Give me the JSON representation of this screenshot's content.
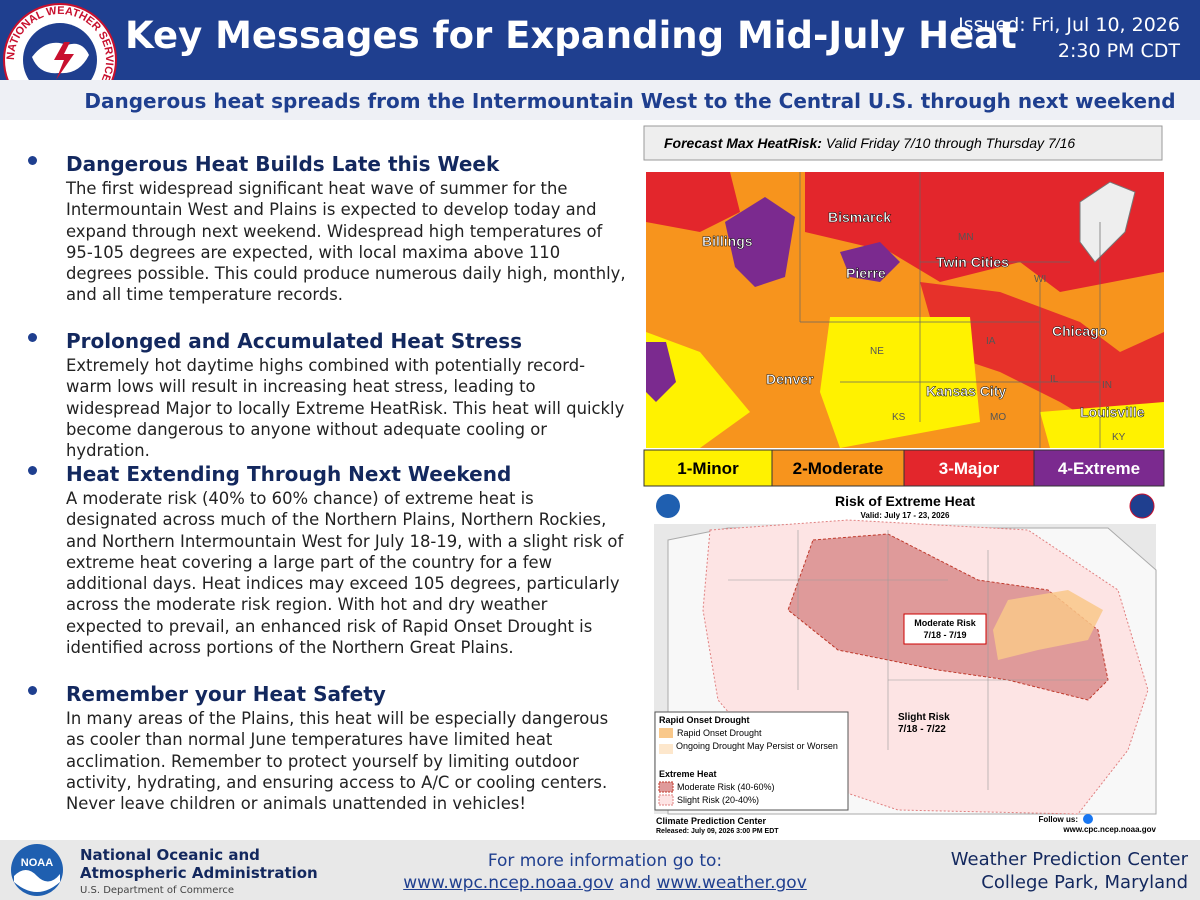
{
  "header": {
    "title": "Key Messages for Expanding Mid-July Heat",
    "issued": "Issued: Fri, Jul 10, 2026",
    "time": "2:30 PM CDT",
    "logo_text": "NATIONAL WEATHER SERVICE"
  },
  "subtitle": "Dangerous heat spreads from the Intermountain West to the Central U.S. through next weekend",
  "messages": [
    {
      "heading": "Dangerous Heat Builds Late this Week",
      "body": "The first widespread significant heat wave of summer for the Intermountain West and Plains is expected to develop today and expand through next weekend. Widespread high temperatures of 95-105 degrees are expected, with local maxima above 110 degrees possible. This could produce numerous daily high, monthly, and all time temperature records."
    },
    {
      "heading": "Prolonged and Accumulated Heat Stress",
      "body": "Extremely hot daytime highs combined with potentially record-warm lows will result in increasing heat stress, leading to widespread Major to locally Extreme HeatRisk. This heat will quickly become dangerous to anyone without adequate cooling or hydration."
    },
    {
      "heading": "Heat Extending Through Next Weekend",
      "body": "A moderate risk (40% to 60% chance) of extreme heat is designated across much of the Northern Plains, Northern Rockies, and Northern Intermountain West for July 18-19, with a slight risk of extreme heat covering a large part of the country for a few additional days. Heat indices may exceed 105 degrees, particularly across the moderate risk region. With hot and dry weather expected to prevail, an enhanced risk of Rapid Onset Drought is identified across portions of the Northern Great Plains."
    },
    {
      "heading": "Remember your Heat Safety",
      "body": "In many areas of the Plains, this heat will be especially dangerous as cooler than normal June temperatures have limited heat acclimation. Remember to protect yourself by limiting outdoor activity, hydrating, and ensuring access to A/C or cooling centers. Never leave children or animals unattended in vehicles!"
    }
  ],
  "heatrisk_map": {
    "title_bold": "Forecast Max HeatRisk:",
    "title_rest": "Valid Friday 7/10 through Thursday 7/16",
    "cities": [
      "Bismarck",
      "Billings",
      "Pierre",
      "Twin Cities",
      "Chicago",
      "Denver",
      "Kansas City",
      "Louisville"
    ],
    "states": [
      "MN",
      "WI",
      "NE",
      "IA",
      "IL",
      "IN",
      "KS",
      "MO",
      "KY"
    ],
    "legend": [
      "1-Minor",
      "2-Moderate",
      "3-Major",
      "4-Extreme"
    ]
  },
  "extreme_heat_map": {
    "title": "Risk of Extreme Heat",
    "valid": "Valid: July 17 - 23, 2026",
    "moderate_label": "Moderate Risk",
    "moderate_dates": "7/18 - 7/19",
    "slight_label": "Slight Risk",
    "slight_dates": "7/18 - 7/22",
    "legend_drought_title": "Rapid Onset Drought",
    "legend_drought": "Rapid Onset Drought",
    "legend_ongoing": "Ongoing Drought May Persist or Worsen",
    "legend_heat_title": "Extreme Heat",
    "legend_moderate": "Moderate Risk (40-60%)",
    "legend_slight": "Slight Risk (20-40%)",
    "center": "Climate Prediction Center",
    "released": "Released: July 09, 2026 3:00 PM EDT",
    "follow": "Follow us:",
    "url": "www.cpc.ncep.noaa.gov"
  },
  "footer": {
    "noaa_logo": "NOAA",
    "noaa_line1": "National Oceanic and",
    "noaa_line2": "Atmospheric Administration",
    "dept": "U.S. Department of Commerce",
    "info": "For more information go to:",
    "link1": "www.wpc.ncep.noaa.gov",
    "and": "and",
    "link2": "www.weather.gov",
    "wpc1": "Weather Prediction Center",
    "wpc2": "College Park, Maryland"
  }
}
